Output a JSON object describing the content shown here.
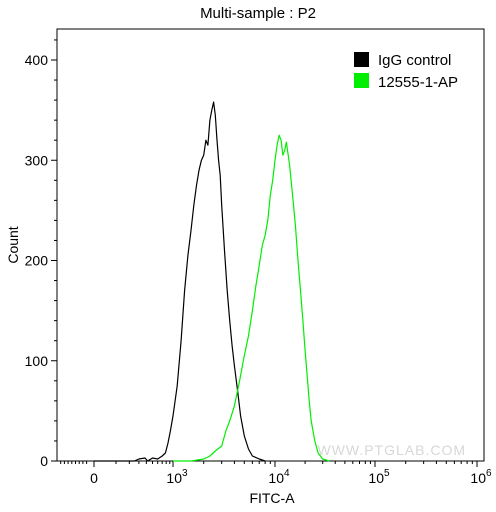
{
  "chart_data": {
    "type": "line",
    "title": "Multi-sample : P2",
    "xlabel": "FITC-A",
    "ylabel": "Count",
    "x_scale": "biexponential",
    "xlim": [
      -300,
      1000000
    ],
    "ylim": [
      0,
      420
    ],
    "x_ticks": [
      {
        "value": 0,
        "base": "0",
        "exp": ""
      },
      {
        "value": 1000,
        "base": "10",
        "exp": "3"
      },
      {
        "value": 10000,
        "base": "10",
        "exp": "4"
      },
      {
        "value": 100000,
        "base": "10",
        "exp": "5"
      },
      {
        "value": 1000000,
        "base": "10",
        "exp": "6"
      }
    ],
    "y_ticks": [
      0,
      100,
      200,
      300,
      400
    ],
    "legend_position": "top-right",
    "watermark": "WWW.PTGLAB.COM",
    "series": [
      {
        "name": "IgG control",
        "color": "#000000",
        "points": [
          [
            0,
            0
          ],
          [
            250,
            0
          ],
          [
            300,
            2
          ],
          [
            380,
            3
          ],
          [
            420,
            0
          ],
          [
            500,
            3
          ],
          [
            600,
            2
          ],
          [
            700,
            5
          ],
          [
            780,
            8
          ],
          [
            850,
            18
          ],
          [
            920,
            30
          ],
          [
            1000,
            45
          ],
          [
            1100,
            75
          ],
          [
            1200,
            120
          ],
          [
            1300,
            170
          ],
          [
            1400,
            205
          ],
          [
            1500,
            230
          ],
          [
            1600,
            255
          ],
          [
            1700,
            275
          ],
          [
            1800,
            290
          ],
          [
            1900,
            300
          ],
          [
            2000,
            305
          ],
          [
            2100,
            320
          ],
          [
            2200,
            315
          ],
          [
            2300,
            340
          ],
          [
            2400,
            350
          ],
          [
            2500,
            358
          ],
          [
            2600,
            345
          ],
          [
            2700,
            320
          ],
          [
            2800,
            300
          ],
          [
            2900,
            285
          ],
          [
            3000,
            255
          ],
          [
            3200,
            210
          ],
          [
            3400,
            170
          ],
          [
            3600,
            140
          ],
          [
            3800,
            115
          ],
          [
            4000,
            95
          ],
          [
            4300,
            70
          ],
          [
            4600,
            45
          ],
          [
            5000,
            25
          ],
          [
            5500,
            12
          ],
          [
            6000,
            5
          ],
          [
            7000,
            2
          ],
          [
            8000,
            0
          ]
        ]
      },
      {
        "name": "12555-1-AP",
        "color": "#00ee00",
        "points": [
          [
            1000,
            0
          ],
          [
            1500,
            0
          ],
          [
            2000,
            2
          ],
          [
            2300,
            5
          ],
          [
            2600,
            10
          ],
          [
            3000,
            15
          ],
          [
            3300,
            30
          ],
          [
            3600,
            40
          ],
          [
            4000,
            55
          ],
          [
            4500,
            80
          ],
          [
            5000,
            105
          ],
          [
            5500,
            125
          ],
          [
            6000,
            150
          ],
          [
            6500,
            175
          ],
          [
            7000,
            195
          ],
          [
            7500,
            215
          ],
          [
            8000,
            225
          ],
          [
            8500,
            240
          ],
          [
            9000,
            265
          ],
          [
            9500,
            280
          ],
          [
            10000,
            300
          ],
          [
            10500,
            315
          ],
          [
            11000,
            325
          ],
          [
            11500,
            320
          ],
          [
            12000,
            305
          ],
          [
            12500,
            310
          ],
          [
            13000,
            318
          ],
          [
            14000,
            295
          ],
          [
            15000,
            265
          ],
          [
            16000,
            235
          ],
          [
            17000,
            200
          ],
          [
            18000,
            170
          ],
          [
            19000,
            140
          ],
          [
            20000,
            110
          ],
          [
            21000,
            85
          ],
          [
            22000,
            60
          ],
          [
            23000,
            40
          ],
          [
            25000,
            20
          ],
          [
            27000,
            8
          ],
          [
            30000,
            2
          ],
          [
            35000,
            0
          ]
        ]
      }
    ]
  }
}
